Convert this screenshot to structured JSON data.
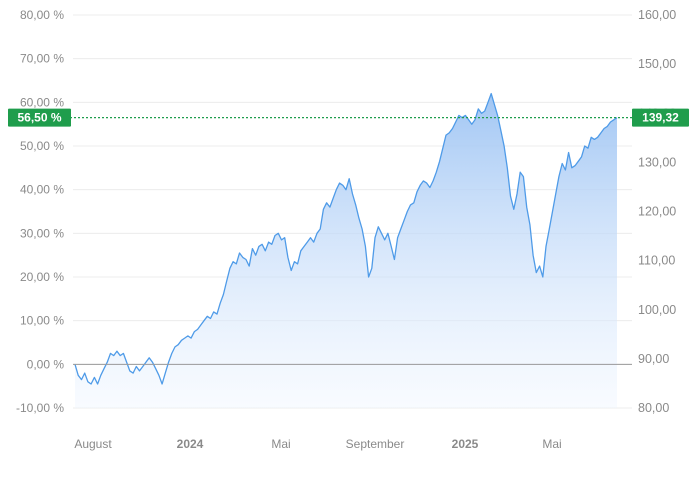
{
  "chart_data": {
    "type": "area",
    "left_axis": {
      "unit": "%",
      "ticks": [
        "80,00 %",
        "70,00 %",
        "60,00 %",
        "50,00 %",
        "40,00 %",
        "30,00 %",
        "20,00 %",
        "10,00 %",
        "0,00 %",
        "-10,00 %"
      ],
      "range": [
        -10,
        80
      ]
    },
    "right_axis": {
      "ticks": [
        "160,00",
        "150,00",
        "140,00",
        "130,00",
        "120,00",
        "110,00",
        "100,00",
        "90,00",
        "80,00"
      ],
      "range": [
        80,
        160
      ]
    },
    "x_ticks": [
      {
        "label": "August",
        "bold": false
      },
      {
        "label": "2024",
        "bold": true
      },
      {
        "label": "Mai",
        "bold": false
      },
      {
        "label": "September",
        "bold": false
      },
      {
        "label": "2025",
        "bold": true
      },
      {
        "label": "Mai",
        "bold": false
      }
    ],
    "grid": "horizontal",
    "baseline_percent": 0,
    "current": {
      "percent_label": "56,50 %",
      "price_label": "139,32",
      "percent": 56.5,
      "price": 139.32
    },
    "series": [
      {
        "values_percent": [
          0.0,
          -2.5,
          -3.5,
          -2.0,
          -4.0,
          -4.5,
          -3.0,
          -4.5,
          -2.5,
          -1.0,
          0.5,
          2.5,
          2.0,
          3.0,
          2.0,
          2.5,
          0.5,
          -1.5,
          -2.0,
          -0.5,
          -1.5,
          -0.5,
          0.5,
          1.5,
          0.5,
          -1.0,
          -2.5,
          -4.5,
          -2.0,
          0.5,
          2.5,
          4.0,
          4.5,
          5.5,
          6.0,
          6.5,
          6.0,
          7.5,
          8.0,
          9.0,
          10.0,
          11.0,
          10.5,
          12.0,
          11.5,
          14.0,
          16.0,
          19.0,
          22.0,
          23.5,
          23.0,
          25.5,
          24.5,
          24.0,
          22.5,
          26.5,
          25.0,
          27.0,
          27.5,
          26.0,
          28.0,
          27.5,
          29.5,
          30.0,
          28.5,
          29.0,
          24.5,
          21.5,
          23.5,
          23.0,
          26.0,
          27.0,
          28.0,
          29.0,
          28.0,
          30.0,
          31.0,
          35.5,
          37.0,
          36.0,
          38.0,
          40.0,
          41.5,
          41.0,
          40.0,
          42.5,
          39.0,
          36.5,
          33.5,
          31.0,
          27.0,
          20.0,
          22.0,
          29.0,
          31.5,
          30.0,
          28.5,
          30.0,
          27.0,
          24.0,
          29.0,
          31.0,
          33.0,
          35.0,
          36.5,
          37.0,
          39.5,
          41.0,
          42.0,
          41.5,
          40.5,
          42.0,
          44.0,
          46.5,
          49.5,
          52.5,
          53.0,
          54.0,
          55.5,
          57.0,
          56.5,
          57.0,
          56.0,
          55.0,
          56.0,
          58.5,
          57.5,
          58.0,
          60.0,
          62.0,
          59.5,
          57.0,
          53.5,
          50.0,
          45.0,
          38.5,
          35.5,
          39.0,
          44.0,
          43.0,
          36.0,
          32.0,
          25.0,
          21.0,
          22.5,
          20.0,
          27.0,
          31.0,
          35.0,
          39.0,
          43.0,
          46.0,
          44.5,
          48.5,
          45.0,
          45.5,
          46.5,
          47.5,
          50.0,
          49.5,
          52.0,
          51.5,
          52.0,
          53.0,
          54.0,
          54.5,
          55.5,
          56.0,
          56.5
        ]
      }
    ]
  }
}
